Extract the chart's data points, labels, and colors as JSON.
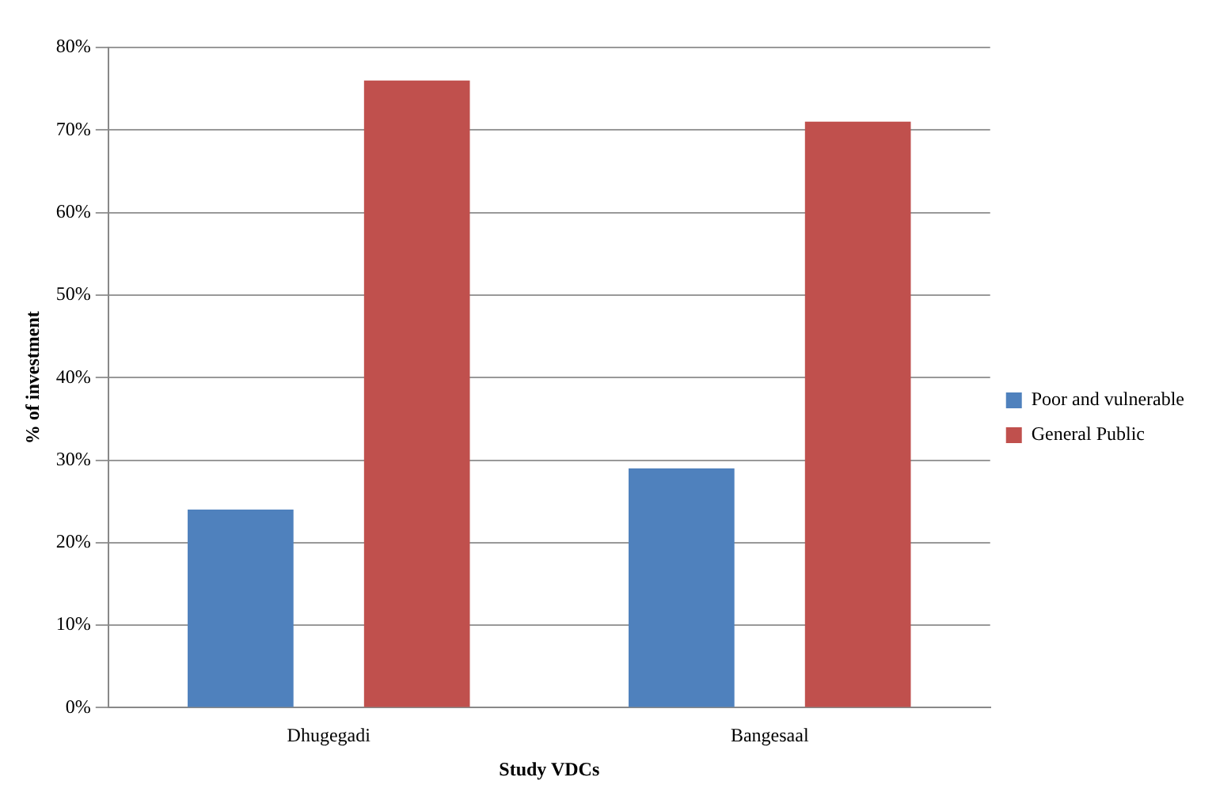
{
  "chart_data": {
    "type": "bar",
    "xlabel": "Study VDCs",
    "ylabel": "% of investment",
    "categories": [
      "Dhugegadi",
      "Bangesaal"
    ],
    "series": [
      {
        "name": "Poor and vulnerable",
        "color": "#4f81bd",
        "values": [
          24,
          29
        ]
      },
      {
        "name": "General Public",
        "color": "#c0504d",
        "values": [
          76,
          71
        ]
      }
    ],
    "ylim": [
      0,
      80
    ],
    "yticks": [
      {
        "value": 0,
        "label": "0%"
      },
      {
        "value": 10,
        "label": "10%"
      },
      {
        "value": 20,
        "label": "20%"
      },
      {
        "value": 30,
        "label": "30%"
      },
      {
        "value": 40,
        "label": "40%"
      },
      {
        "value": 50,
        "label": "50%"
      },
      {
        "value": 60,
        "label": "60%"
      },
      {
        "value": 70,
        "label": "70%"
      },
      {
        "value": 80,
        "label": "80%"
      }
    ],
    "grid": "y",
    "legend": "right"
  }
}
